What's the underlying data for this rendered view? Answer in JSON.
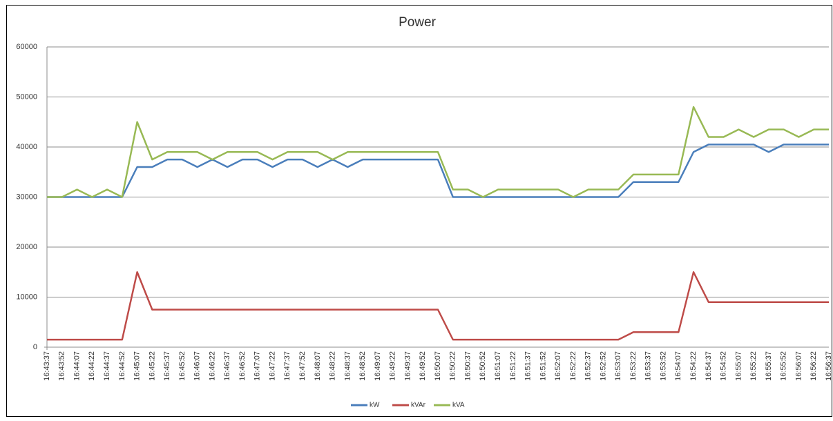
{
  "chart_data": {
    "type": "line",
    "title": "Power",
    "categories": [
      "16:43:37",
      "16:43:52",
      "16:44:07",
      "16:44:22",
      "16:44:37",
      "16:44:52",
      "16:45:07",
      "16:45:22",
      "16:45:37",
      "16:45:52",
      "16:46:07",
      "16:46:22",
      "16:46:37",
      "16:46:52",
      "16:47:07",
      "16:47:22",
      "16:47:37",
      "16:47:52",
      "16:48:07",
      "16:48:22",
      "16:48:37",
      "16:48:52",
      "16:49:07",
      "16:49:22",
      "16:49:37",
      "16:49:52",
      "16:50:07",
      "16:50:22",
      "16:50:37",
      "16:50:52",
      "16:51:07",
      "16:51:22",
      "16:51:37",
      "16:51:52",
      "16:52:07",
      "16:52:22",
      "16:52:37",
      "16:52:52",
      "16:53:07",
      "16:53:22",
      "16:53:37",
      "16:53:52",
      "16:54:07",
      "16:54:22",
      "16:54:37",
      "16:54:52",
      "16:55:07",
      "16:55:22",
      "16:55:37",
      "16:55:52",
      "16:56:07",
      "16:56:22",
      "16:56:37"
    ],
    "series": [
      {
        "name": "kW",
        "color": "#4a7ebb",
        "values": [
          30000,
          30000,
          30000,
          30000,
          30000,
          30000,
          36000,
          36000,
          37500,
          37500,
          36000,
          37500,
          36000,
          37500,
          37500,
          36000,
          37500,
          37500,
          36000,
          37500,
          36000,
          37500,
          37500,
          37500,
          37500,
          37500,
          37500,
          30000,
          30000,
          30000,
          30000,
          30000,
          30000,
          30000,
          30000,
          30000,
          30000,
          30000,
          30000,
          33000,
          33000,
          33000,
          33000,
          39000,
          40500,
          40500,
          40500,
          40500,
          39000,
          40500,
          40500,
          40500,
          40500
        ]
      },
      {
        "name": "kVAr",
        "color": "#be4b48",
        "values": [
          1500,
          1500,
          1500,
          1500,
          1500,
          1500,
          15000,
          7500,
          7500,
          7500,
          7500,
          7500,
          7500,
          7500,
          7500,
          7500,
          7500,
          7500,
          7500,
          7500,
          7500,
          7500,
          7500,
          7500,
          7500,
          7500,
          7500,
          1500,
          1500,
          1500,
          1500,
          1500,
          1500,
          1500,
          1500,
          1500,
          1500,
          1500,
          1500,
          3000,
          3000,
          3000,
          3000,
          15000,
          9000,
          9000,
          9000,
          9000,
          9000,
          9000,
          9000,
          9000,
          9000
        ]
      },
      {
        "name": "kVA",
        "color": "#98b954",
        "values": [
          30000,
          30000,
          31500,
          30000,
          31500,
          30000,
          45000,
          37500,
          39000,
          39000,
          39000,
          37500,
          39000,
          39000,
          39000,
          37500,
          39000,
          39000,
          39000,
          37500,
          39000,
          39000,
          39000,
          39000,
          39000,
          39000,
          39000,
          31500,
          31500,
          30000,
          31500,
          31500,
          31500,
          31500,
          31500,
          30000,
          31500,
          31500,
          31500,
          34500,
          34500,
          34500,
          34500,
          48000,
          42000,
          42000,
          43500,
          42000,
          43500,
          43500,
          42000,
          43500,
          43500
        ]
      }
    ],
    "ylim": [
      0,
      60000
    ],
    "yticks": [
      0,
      10000,
      20000,
      30000,
      40000,
      50000,
      60000
    ],
    "grid": true,
    "legend": "bottom"
  }
}
